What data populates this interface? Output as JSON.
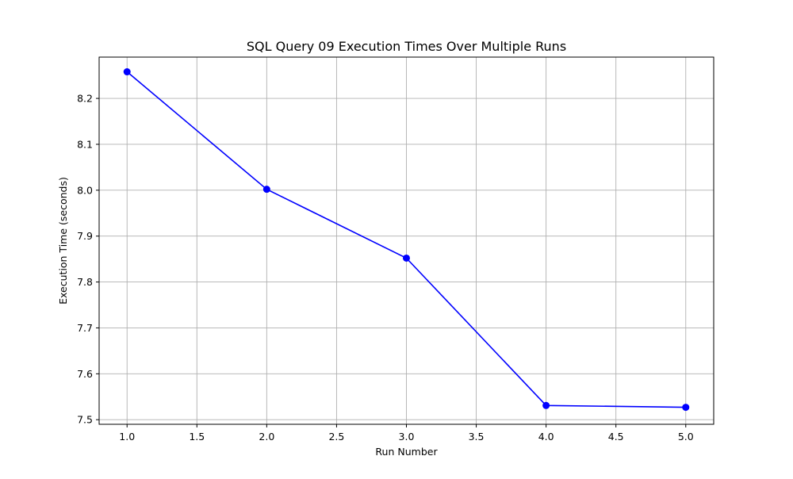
{
  "chart_data": {
    "type": "line",
    "title": "SQL Query 09 Execution Times Over Multiple Runs",
    "xlabel": "Run Number",
    "ylabel": "Execution Time (seconds)",
    "xlim": [
      0.8,
      5.2
    ],
    "ylim": [
      7.49,
      8.29
    ],
    "xticks": [
      1.0,
      1.5,
      2.0,
      2.5,
      3.0,
      3.5,
      4.0,
      4.5,
      5.0
    ],
    "xtick_labels": [
      "1.0",
      "1.5",
      "2.0",
      "2.5",
      "3.0",
      "3.5",
      "4.0",
      "4.5",
      "5.0"
    ],
    "yticks": [
      7.5,
      7.6,
      7.7,
      7.8,
      7.9,
      8.0,
      8.1,
      8.2
    ],
    "ytick_labels": [
      "7.5",
      "7.6",
      "7.7",
      "7.8",
      "7.9",
      "8.0",
      "8.1",
      "8.2"
    ],
    "grid": true,
    "series": [
      {
        "color": "#0000ff",
        "marker": "circle",
        "x": [
          1,
          2,
          3,
          4,
          5
        ],
        "y": [
          8.258,
          8.002,
          7.852,
          7.531,
          7.527
        ]
      }
    ]
  }
}
